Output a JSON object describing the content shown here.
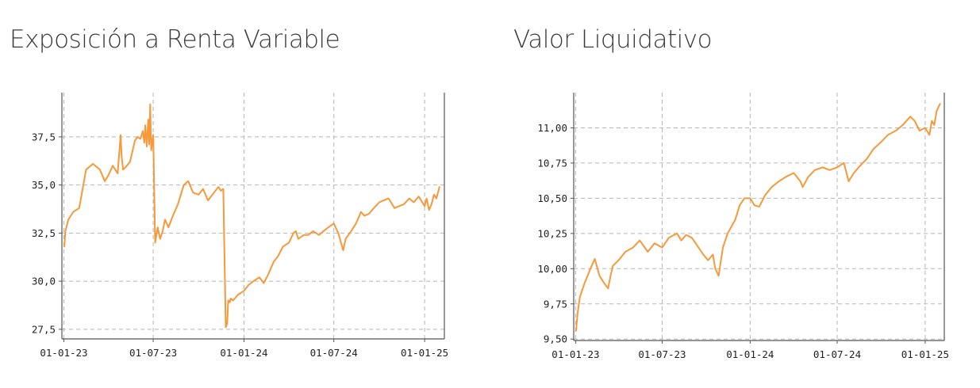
{
  "chart_data": [
    {
      "type": "line",
      "title": "Exposición a Renta Variable",
      "xlabel": "",
      "ylabel": "",
      "x_ticks": [
        "01-01-23",
        "01-07-23",
        "01-01-24",
        "01-07-24",
        "01-01-25"
      ],
      "x_tick_dates": [
        "2023-01-01",
        "2023-07-01",
        "2024-01-01",
        "2024-07-01",
        "2025-01-01"
      ],
      "xlim": [
        "2022-12-28",
        "2025-02-10"
      ],
      "y_ticks": [
        "27,5",
        "30,0",
        "32,5",
        "35,0",
        "37,5"
      ],
      "ylim": [
        27.0,
        39.8
      ],
      "grid": true,
      "color": "#f5993a",
      "x": [
        "2023-01-02",
        "2023-01-04",
        "2023-01-10",
        "2023-01-20",
        "2023-02-01",
        "2023-02-15",
        "2023-03-01",
        "2023-03-15",
        "2023-03-25",
        "2023-04-01",
        "2023-04-10",
        "2023-04-20",
        "2023-04-26",
        "2023-04-28",
        "2023-05-01",
        "2023-05-05",
        "2023-05-15",
        "2023-05-25",
        "2023-05-30",
        "2023-06-05",
        "2023-06-10",
        "2023-06-13",
        "2023-06-15",
        "2023-06-18",
        "2023-06-21",
        "2023-06-23",
        "2023-06-25",
        "2023-06-27",
        "2023-07-01",
        "2023-07-05",
        "2023-07-10",
        "2023-07-15",
        "2023-07-20",
        "2023-07-25",
        "2023-08-01",
        "2023-08-10",
        "2023-08-20",
        "2023-09-01",
        "2023-09-10",
        "2023-09-20",
        "2023-10-01",
        "2023-10-10",
        "2023-10-20",
        "2023-11-01",
        "2023-11-10",
        "2023-11-15",
        "2023-11-20",
        "2023-11-25",
        "2023-11-28",
        "2023-11-30",
        "2023-12-03",
        "2023-12-05",
        "2023-12-10",
        "2023-12-20",
        "2024-01-01",
        "2024-01-10",
        "2024-01-20",
        "2024-02-01",
        "2024-02-10",
        "2024-02-20",
        "2024-03-01",
        "2024-03-10",
        "2024-03-20",
        "2024-04-01",
        "2024-04-10",
        "2024-04-15",
        "2024-04-20",
        "2024-05-01",
        "2024-05-10",
        "2024-05-20",
        "2024-06-01",
        "2024-06-10",
        "2024-06-20",
        "2024-07-01",
        "2024-07-10",
        "2024-07-20",
        "2024-07-25",
        "2024-08-05",
        "2024-08-15",
        "2024-08-25",
        "2024-09-01",
        "2024-09-10",
        "2024-09-20",
        "2024-10-01",
        "2024-10-10",
        "2024-10-20",
        "2024-11-01",
        "2024-11-10",
        "2024-11-20",
        "2024-12-01",
        "2024-12-10",
        "2024-12-20",
        "2025-01-01",
        "2025-01-05",
        "2025-01-10",
        "2025-01-15",
        "2025-01-20",
        "2025-01-25",
        "2025-01-31"
      ],
      "y": [
        31.8,
        32.6,
        33.2,
        33.6,
        33.8,
        35.8,
        36.1,
        35.8,
        35.2,
        35.5,
        36.0,
        35.6,
        37.6,
        36.5,
        35.8,
        35.9,
        36.2,
        37.3,
        37.5,
        37.4,
        37.8,
        37.2,
        38.1,
        37.0,
        38.4,
        37.1,
        39.2,
        36.8,
        37.6,
        32.0,
        32.8,
        32.2,
        32.6,
        33.2,
        32.8,
        33.4,
        34.0,
        35.0,
        35.2,
        34.6,
        34.5,
        34.8,
        34.2,
        34.6,
        34.9,
        34.7,
        34.8,
        27.6,
        27.8,
        29.0,
        28.9,
        29.1,
        29.0,
        29.3,
        29.5,
        29.8,
        30.0,
        30.2,
        29.9,
        30.4,
        31.0,
        31.3,
        31.8,
        32.0,
        32.5,
        32.6,
        32.2,
        32.4,
        32.4,
        32.6,
        32.4,
        32.6,
        32.8,
        33.0,
        32.5,
        31.6,
        32.2,
        32.6,
        33.0,
        33.6,
        33.4,
        33.5,
        33.8,
        34.1,
        34.2,
        34.3,
        33.8,
        33.9,
        34.0,
        34.3,
        34.1,
        34.4,
        33.9,
        34.3,
        33.7,
        34.0,
        34.5,
        34.3,
        34.9
      ]
    },
    {
      "type": "line",
      "title": "Valor Liquidativo",
      "xlabel": "",
      "ylabel": "",
      "x_ticks": [
        "01-01-23",
        "01-07-23",
        "01-01-24",
        "01-07-24",
        "01-01-25"
      ],
      "x_tick_dates": [
        "2023-01-01",
        "2023-07-01",
        "2024-01-01",
        "2024-07-01",
        "2025-01-01"
      ],
      "xlim": [
        "2022-12-28",
        "2025-02-10"
      ],
      "y_ticks": [
        "9,50",
        "9,75",
        "10,00",
        "10,25",
        "10,50",
        "10,75",
        "11,00"
      ],
      "ylim": [
        9.49,
        11.25
      ],
      "grid": true,
      "color": "#f5993a",
      "x": [
        "2023-01-02",
        "2023-01-05",
        "2023-01-10",
        "2023-01-20",
        "2023-02-01",
        "2023-02-10",
        "2023-02-20",
        "2023-03-01",
        "2023-03-10",
        "2023-03-15",
        "2023-03-20",
        "2023-04-01",
        "2023-04-15",
        "2023-05-01",
        "2023-05-15",
        "2023-06-01",
        "2023-06-15",
        "2023-07-01",
        "2023-07-15",
        "2023-08-01",
        "2023-08-10",
        "2023-08-20",
        "2023-09-01",
        "2023-09-15",
        "2023-09-25",
        "2023-10-05",
        "2023-10-15",
        "2023-10-20",
        "2023-10-27",
        "2023-11-05",
        "2023-11-15",
        "2023-12-01",
        "2023-12-10",
        "2023-12-20",
        "2024-01-01",
        "2024-01-10",
        "2024-01-20",
        "2024-02-01",
        "2024-02-15",
        "2024-03-01",
        "2024-03-15",
        "2024-04-01",
        "2024-04-15",
        "2024-04-20",
        "2024-05-01",
        "2024-05-15",
        "2024-06-01",
        "2024-06-15",
        "2024-07-01",
        "2024-07-15",
        "2024-07-25",
        "2024-08-05",
        "2024-08-15",
        "2024-09-01",
        "2024-09-15",
        "2024-10-01",
        "2024-10-15",
        "2024-11-01",
        "2024-11-15",
        "2024-12-01",
        "2024-12-10",
        "2024-12-20",
        "2025-01-01",
        "2025-01-10",
        "2025-01-15",
        "2025-01-20",
        "2025-01-25",
        "2025-02-01"
      ],
      "y": [
        9.56,
        9.68,
        9.8,
        9.9,
        10.0,
        10.07,
        9.95,
        9.9,
        9.86,
        9.95,
        10.02,
        10.06,
        10.12,
        10.15,
        10.2,
        10.12,
        10.18,
        10.15,
        10.22,
        10.25,
        10.2,
        10.24,
        10.22,
        10.15,
        10.1,
        10.06,
        10.1,
        10.0,
        9.95,
        10.15,
        10.25,
        10.35,
        10.45,
        10.5,
        10.5,
        10.45,
        10.44,
        10.52,
        10.58,
        10.62,
        10.65,
        10.68,
        10.62,
        10.58,
        10.65,
        10.7,
        10.72,
        10.7,
        10.72,
        10.75,
        10.62,
        10.68,
        10.72,
        10.78,
        10.85,
        10.9,
        10.95,
        10.98,
        11.02,
        11.08,
        11.05,
        10.98,
        11.0,
        10.95,
        11.05,
        11.02,
        11.12,
        11.17
      ]
    }
  ]
}
